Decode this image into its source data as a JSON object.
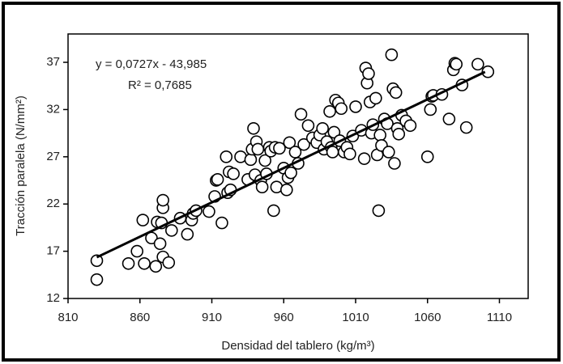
{
  "chart_data": {
    "type": "scatter",
    "x_label": "Densidad del tablero (kg/m³)",
    "y_label": "Tracción paralela (N/mm²)",
    "equation": "y = 0,0727x - 43,985",
    "r2_label": "R² = 0,7685",
    "xlim": [
      810,
      1130
    ],
    "ylim": [
      12,
      40
    ],
    "xticks": [
      810,
      860,
      910,
      960,
      1010,
      1060,
      1110
    ],
    "yticks": [
      12,
      17,
      22,
      27,
      32,
      37
    ],
    "color": "#000000",
    "trendline": {
      "x": [
        830,
        1100
      ],
      "y": [
        16.36,
        35.985
      ]
    },
    "x": [
      830,
      830,
      852,
      858,
      862,
      863,
      868,
      871,
      872,
      874,
      875,
      876,
      876,
      876,
      880,
      882,
      888,
      893,
      896,
      897,
      899,
      908,
      912,
      913,
      914,
      917,
      920,
      921,
      922,
      923,
      925,
      930,
      935,
      937,
      938,
      939,
      940,
      941,
      942,
      944,
      945,
      947,
      948,
      950,
      951,
      953,
      954,
      955,
      957,
      960,
      962,
      963,
      964,
      965,
      968,
      970,
      972,
      974,
      977,
      980,
      983,
      985,
      987,
      988,
      990,
      992,
      993,
      994,
      995,
      996,
      998,
      999,
      1000,
      1002,
      1004,
      1006,
      1008,
      1010,
      1014,
      1016,
      1017,
      1018,
      1019,
      1020,
      1021,
      1022,
      1024,
      1025,
      1026,
      1027,
      1028,
      1030,
      1032,
      1033,
      1035,
      1036,
      1037,
      1038,
      1039,
      1040,
      1042,
      1045,
      1048,
      1060,
      1062,
      1063,
      1064,
      1070,
      1075,
      1078,
      1079,
      1080,
      1084,
      1087,
      1095,
      1102
    ],
    "y": [
      16,
      14,
      15.7,
      17,
      20.3,
      15.7,
      18.4,
      15.4,
      20.1,
      17.8,
      20,
      21.6,
      22.4,
      16.4,
      15.8,
      19.2,
      20.5,
      18.8,
      20.3,
      21,
      21.3,
      21.2,
      22.8,
      24.5,
      24.6,
      20,
      27,
      23.2,
      25.4,
      23.5,
      25.2,
      27,
      24.6,
      26.7,
      27.8,
      30,
      25.1,
      28.6,
      27.8,
      24.5,
      23.8,
      26.6,
      25.2,
      28,
      27.6,
      21.3,
      28,
      23.8,
      27.9,
      25.8,
      23.5,
      24.8,
      28.5,
      25.3,
      27.5,
      26.3,
      31.5,
      28.3,
      30.3,
      29,
      28.5,
      29.3,
      30,
      27.8,
      28.6,
      31.8,
      28,
      27.5,
      29.6,
      33,
      32.7,
      28.7,
      32.1,
      27.5,
      28,
      27.3,
      29.2,
      32.3,
      29.8,
      26.8,
      36.4,
      34.8,
      35.8,
      32.8,
      29.5,
      30.4,
      33.2,
      27.2,
      21.3,
      29.3,
      28.2,
      31,
      30.5,
      27.5,
      37.8,
      34.2,
      26.3,
      33.8,
      30,
      29.4,
      31.4,
      30.8,
      30.3,
      27,
      32,
      33.4,
      33.5,
      33.6,
      31,
      36.2,
      36.9,
      36.8,
      34.6,
      30.1,
      36.8,
      36
    ]
  }
}
